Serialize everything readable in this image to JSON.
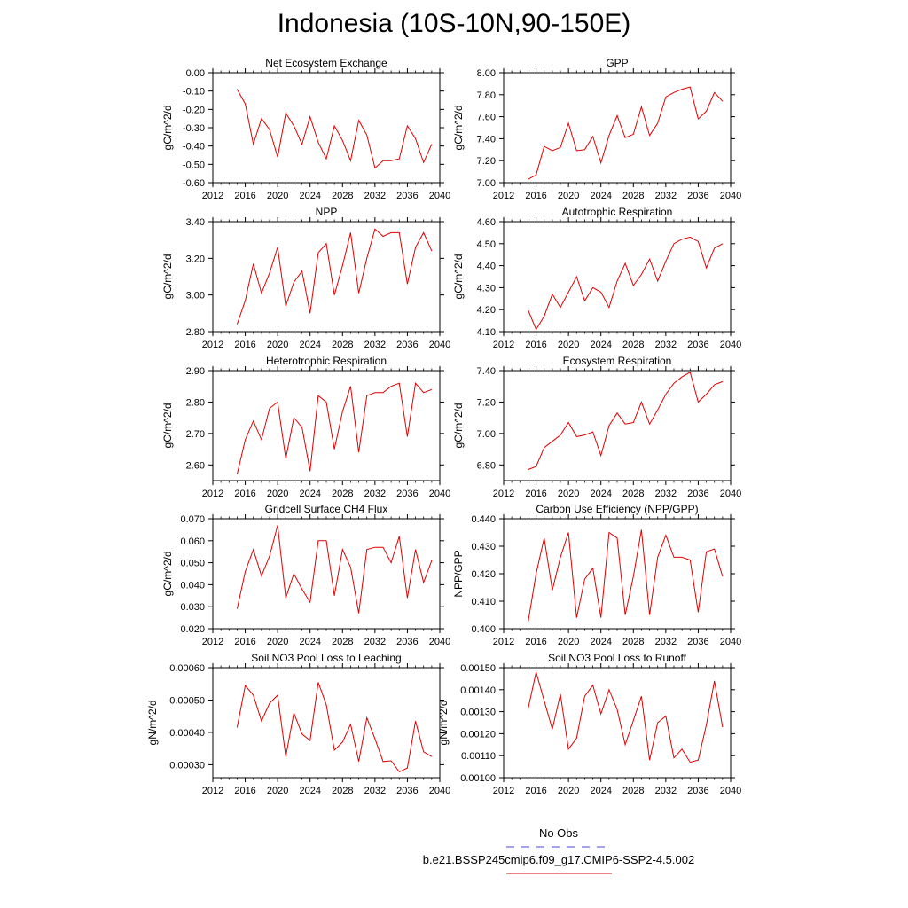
{
  "title": "Indonesia (10S-10N,90-150E)",
  "legend": {
    "obs_label": "No Obs",
    "run_label": "b.e21.BSSP245cmip6.f09_g17.CMIP6-SSP2-4.5.002",
    "obs_color": "#4a4ad8",
    "run_color": "#e00000"
  },
  "chart_data": [
    {
      "type": "line",
      "title": "Net Ecosystem Exchange",
      "ylabel": "gC/m^2/d",
      "xlim": [
        2012,
        2040
      ],
      "ylim": [
        -0.6,
        0.0
      ],
      "xticks": [
        "2012",
        "2016",
        "2020",
        "2024",
        "2028",
        "2032",
        "2036",
        "2040"
      ],
      "yticks": [
        "-0.60",
        "-0.50",
        "-0.40",
        "-0.30",
        "-0.20",
        "-0.10",
        "0.00"
      ],
      "x": [
        2015,
        2016,
        2017,
        2018,
        2019,
        2020,
        2021,
        2022,
        2023,
        2024,
        2025,
        2026,
        2027,
        2028,
        2029,
        2030,
        2031,
        2032,
        2033,
        2034,
        2035,
        2036,
        2037,
        2038,
        2039
      ],
      "values": [
        -0.09,
        -0.17,
        -0.39,
        -0.25,
        -0.31,
        -0.46,
        -0.22,
        -0.29,
        -0.39,
        -0.24,
        -0.38,
        -0.47,
        -0.29,
        -0.37,
        -0.48,
        -0.26,
        -0.34,
        -0.52,
        -0.48,
        -0.48,
        -0.47,
        -0.29,
        -0.36,
        -0.49,
        -0.39
      ]
    },
    {
      "type": "line",
      "title": "GPP",
      "ylabel": "gC/m^2/d",
      "xlim": [
        2012,
        2040
      ],
      "ylim": [
        7.0,
        8.0
      ],
      "xticks": [
        "2012",
        "2016",
        "2020",
        "2024",
        "2028",
        "2032",
        "2036",
        "2040"
      ],
      "yticks": [
        "7.00",
        "7.20",
        "7.40",
        "7.60",
        "7.80",
        "8.00"
      ],
      "x": [
        2015,
        2016,
        2017,
        2018,
        2019,
        2020,
        2021,
        2022,
        2023,
        2024,
        2025,
        2026,
        2027,
        2028,
        2029,
        2030,
        2031,
        2032,
        2033,
        2034,
        2035,
        2036,
        2037,
        2038,
        2039
      ],
      "values": [
        7.03,
        7.07,
        7.33,
        7.29,
        7.32,
        7.54,
        7.29,
        7.3,
        7.42,
        7.18,
        7.43,
        7.61,
        7.41,
        7.44,
        7.69,
        7.43,
        7.54,
        7.78,
        7.82,
        7.85,
        7.87,
        7.58,
        7.65,
        7.82,
        7.74
      ]
    },
    {
      "type": "line",
      "title": "NPP",
      "ylabel": "gC/m^2/d",
      "xlim": [
        2012,
        2040
      ],
      "ylim": [
        2.8,
        3.4
      ],
      "xticks": [
        "2012",
        "2016",
        "2020",
        "2024",
        "2028",
        "2032",
        "2036",
        "2040"
      ],
      "yticks": [
        "2.80",
        "3.00",
        "3.20",
        "3.40"
      ],
      "x": [
        2015,
        2016,
        2017,
        2018,
        2019,
        2020,
        2021,
        2022,
        2023,
        2024,
        2025,
        2026,
        2027,
        2028,
        2029,
        2030,
        2031,
        2032,
        2033,
        2034,
        2035,
        2036,
        2037,
        2038,
        2039
      ],
      "values": [
        2.84,
        2.97,
        3.17,
        3.01,
        3.12,
        3.26,
        2.94,
        3.07,
        3.13,
        2.9,
        3.23,
        3.28,
        3.0,
        3.16,
        3.34,
        3.01,
        3.2,
        3.36,
        3.32,
        3.34,
        3.34,
        3.06,
        3.26,
        3.34,
        3.24
      ]
    },
    {
      "type": "line",
      "title": "Autotrophic Respiration",
      "ylabel": "gC/m^2/d",
      "xlim": [
        2012,
        2040
      ],
      "ylim": [
        4.1,
        4.6
      ],
      "xticks": [
        "2012",
        "2016",
        "2020",
        "2024",
        "2028",
        "2032",
        "2036",
        "2040"
      ],
      "yticks": [
        "4.10",
        "4.20",
        "4.30",
        "4.40",
        "4.50",
        "4.60"
      ],
      "x": [
        2015,
        2016,
        2017,
        2018,
        2019,
        2020,
        2021,
        2022,
        2023,
        2024,
        2025,
        2026,
        2027,
        2028,
        2029,
        2030,
        2031,
        2032,
        2033,
        2034,
        2035,
        2036,
        2037,
        2038,
        2039
      ],
      "values": [
        4.2,
        4.11,
        4.17,
        4.27,
        4.21,
        4.28,
        4.35,
        4.24,
        4.3,
        4.28,
        4.21,
        4.33,
        4.41,
        4.31,
        4.36,
        4.43,
        4.33,
        4.42,
        4.5,
        4.52,
        4.53,
        4.51,
        4.39,
        4.48,
        4.5
      ]
    },
    {
      "type": "line",
      "title": "Heterotrophic Respiration",
      "ylabel": "gC/m^2/d",
      "xlim": [
        2012,
        2040
      ],
      "ylim": [
        2.55,
        2.9
      ],
      "xticks": [
        "2012",
        "2016",
        "2020",
        "2024",
        "2028",
        "2032",
        "2036",
        "2040"
      ],
      "yticks": [
        "2.60",
        "2.70",
        "2.80",
        "2.90"
      ],
      "x": [
        2015,
        2016,
        2017,
        2018,
        2019,
        2020,
        2021,
        2022,
        2023,
        2024,
        2025,
        2026,
        2027,
        2028,
        2029,
        2030,
        2031,
        2032,
        2033,
        2034,
        2035,
        2036,
        2037,
        2038,
        2039
      ],
      "values": [
        2.57,
        2.68,
        2.74,
        2.68,
        2.78,
        2.8,
        2.62,
        2.75,
        2.72,
        2.58,
        2.82,
        2.8,
        2.65,
        2.77,
        2.85,
        2.64,
        2.82,
        2.83,
        2.83,
        2.85,
        2.86,
        2.69,
        2.86,
        2.83,
        2.84
      ]
    },
    {
      "type": "line",
      "title": "Ecosystem Respiration",
      "ylabel": "gC/m^2/d",
      "xlim": [
        2012,
        2040
      ],
      "ylim": [
        6.7,
        7.4
      ],
      "xticks": [
        "2012",
        "2016",
        "2020",
        "2024",
        "2028",
        "2032",
        "2036",
        "2040"
      ],
      "yticks": [
        "6.80",
        "7.00",
        "7.20",
        "7.40"
      ],
      "x": [
        2015,
        2016,
        2017,
        2018,
        2019,
        2020,
        2021,
        2022,
        2023,
        2024,
        2025,
        2026,
        2027,
        2028,
        2029,
        2030,
        2031,
        2032,
        2033,
        2034,
        2035,
        2036,
        2037,
        2038,
        2039
      ],
      "values": [
        6.77,
        6.79,
        6.91,
        6.95,
        6.99,
        7.07,
        6.98,
        6.99,
        7.01,
        6.86,
        7.05,
        7.13,
        7.06,
        7.07,
        7.2,
        7.06,
        7.15,
        7.25,
        7.32,
        7.36,
        7.39,
        7.2,
        7.25,
        7.31,
        7.33
      ]
    },
    {
      "type": "line",
      "title": "Gridcell Surface CH4 Flux",
      "ylabel": "gC/m^2/d",
      "xlim": [
        2012,
        2040
      ],
      "ylim": [
        0.02,
        0.07
      ],
      "xticks": [
        "2012",
        "2016",
        "2020",
        "2024",
        "2028",
        "2032",
        "2036",
        "2040"
      ],
      "yticks": [
        "0.020",
        "0.030",
        "0.040",
        "0.050",
        "0.060",
        "0.070"
      ],
      "x": [
        2015,
        2016,
        2017,
        2018,
        2019,
        2020,
        2021,
        2022,
        2023,
        2024,
        2025,
        2026,
        2027,
        2028,
        2029,
        2030,
        2031,
        2032,
        2033,
        2034,
        2035,
        2036,
        2037,
        2038,
        2039
      ],
      "values": [
        0.029,
        0.046,
        0.056,
        0.044,
        0.053,
        0.067,
        0.034,
        0.045,
        0.038,
        0.032,
        0.06,
        0.06,
        0.035,
        0.056,
        0.048,
        0.027,
        0.056,
        0.057,
        0.057,
        0.05,
        0.062,
        0.034,
        0.056,
        0.041,
        0.051
      ]
    },
    {
      "type": "line",
      "title": "Carbon Use Efficiency (NPP/GPP)",
      "ylabel": "NPP/GPP",
      "xlim": [
        2012,
        2040
      ],
      "ylim": [
        0.4,
        0.44
      ],
      "xticks": [
        "2012",
        "2016",
        "2020",
        "2024",
        "2028",
        "2032",
        "2036",
        "2040"
      ],
      "yticks": [
        "0.400",
        "0.410",
        "0.420",
        "0.430",
        "0.440"
      ],
      "x": [
        2015,
        2016,
        2017,
        2018,
        2019,
        2020,
        2021,
        2022,
        2023,
        2024,
        2025,
        2026,
        2027,
        2028,
        2029,
        2030,
        2031,
        2032,
        2033,
        2034,
        2035,
        2036,
        2037,
        2038,
        2039
      ],
      "values": [
        0.402,
        0.42,
        0.433,
        0.414,
        0.426,
        0.435,
        0.404,
        0.418,
        0.422,
        0.404,
        0.435,
        0.433,
        0.405,
        0.419,
        0.436,
        0.405,
        0.426,
        0.434,
        0.426,
        0.426,
        0.425,
        0.406,
        0.428,
        0.429,
        0.419
      ]
    },
    {
      "type": "line",
      "title": "Soil NO3 Pool Loss to Leaching",
      "ylabel": "gN/m^2/d",
      "xlim": [
        2012,
        2040
      ],
      "ylim": [
        0.00026,
        0.0006
      ],
      "xticks": [
        "2012",
        "2016",
        "2020",
        "2024",
        "2028",
        "2032",
        "2036",
        "2040"
      ],
      "yticks": [
        "0.00030",
        "0.00040",
        "0.00050",
        "0.00060"
      ],
      "x": [
        2015,
        2016,
        2017,
        2018,
        2019,
        2020,
        2021,
        2022,
        2023,
        2024,
        2025,
        2026,
        2027,
        2028,
        2029,
        2030,
        2031,
        2032,
        2033,
        2034,
        2035,
        2036,
        2037,
        2038,
        2039
      ],
      "values": [
        0.000415,
        0.000545,
        0.000515,
        0.000435,
        0.00049,
        0.000515,
        0.000325,
        0.00046,
        0.000395,
        0.000375,
        0.000555,
        0.000485,
        0.000345,
        0.00037,
        0.000425,
        0.00031,
        0.000445,
        0.00038,
        0.00031,
        0.000312,
        0.000278,
        0.00029,
        0.000435,
        0.00034,
        0.000325
      ]
    },
    {
      "type": "line",
      "title": "Soil NO3 Pool Loss to Runoff",
      "ylabel": "gN/m^2/d",
      "xlim": [
        2012,
        2040
      ],
      "ylim": [
        0.001,
        0.0015
      ],
      "xticks": [
        "2012",
        "2016",
        "2020",
        "2024",
        "2028",
        "2032",
        "2036",
        "2040"
      ],
      "yticks": [
        "0.00100",
        "0.00110",
        "0.00120",
        "0.00130",
        "0.00140",
        "0.00150"
      ],
      "x": [
        2015,
        2016,
        2017,
        2018,
        2019,
        2020,
        2021,
        2022,
        2023,
        2024,
        2025,
        2026,
        2027,
        2028,
        2029,
        2030,
        2031,
        2032,
        2033,
        2034,
        2035,
        2036,
        2037,
        2038,
        2039
      ],
      "values": [
        0.00131,
        0.00148,
        0.00135,
        0.00122,
        0.00138,
        0.00113,
        0.00118,
        0.00137,
        0.00142,
        0.00129,
        0.0014,
        0.00131,
        0.00115,
        0.00126,
        0.00137,
        0.00108,
        0.00125,
        0.00128,
        0.00109,
        0.00113,
        0.00107,
        0.00108,
        0.00124,
        0.00144,
        0.00123
      ]
    }
  ]
}
